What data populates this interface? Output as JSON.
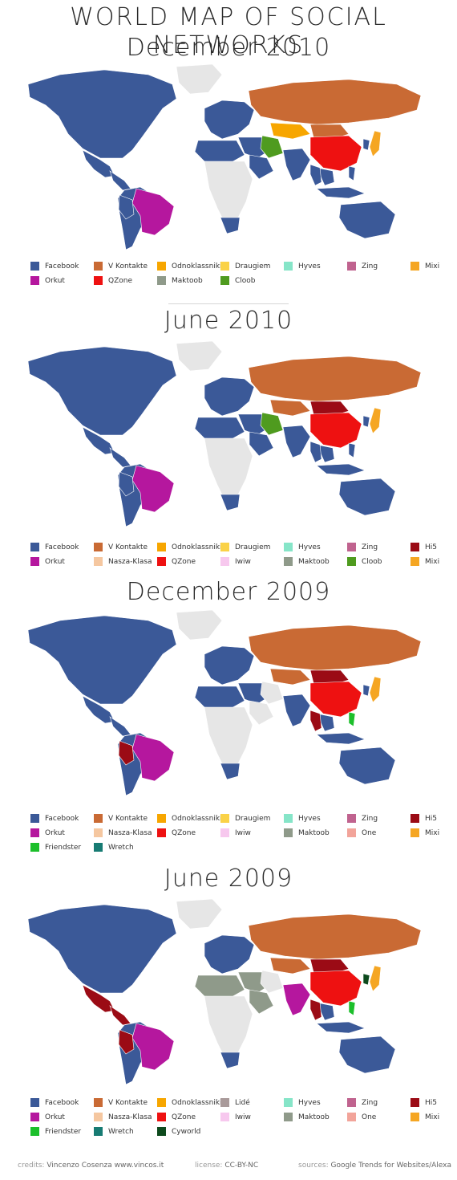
{
  "title": "WORLD MAP OF SOCIAL NETWORKS",
  "colors": {
    "Facebook": "#3b5998",
    "V Kontakte": "#c96a34",
    "Odnoklassniki": "#f7a600",
    "Draugiem": "#fad247",
    "Hyves": "#86e5c8",
    "Zing": "#c0638f",
    "Mixi": "#f5a623",
    "Orkut": "#b5179e",
    "QZone": "#ee1111",
    "Maktoob": "#8f9a8a",
    "Cloob": "#4f9b1f",
    "Hi5": "#9b0b15",
    "Nasza-Klasa": "#f5c7a0",
    "Iwiw": "#f7c8ee",
    "One": "#f2a49a",
    "Friendster": "#1cbf2b",
    "Wretch": "#177b73",
    "Lidé": "#a99a9a",
    "Cyworld": "#0d4a1d",
    "none": "#e6e6e6"
  },
  "maps": [
    {
      "period": "December 2010",
      "legend": [
        [
          "Facebook",
          "V Kontakte",
          "Odnoklassniki",
          "Draugiem",
          "Hyves",
          "Zing",
          "Mixi"
        ],
        [
          "Orkut",
          "QZone",
          "Maktoob",
          "Cloob"
        ]
      ],
      "regions": {
        "northAmerica": "Facebook",
        "mexico": "Facebook",
        "centralAm": "Facebook",
        "southAmerica": "Facebook",
        "brazil": "Orkut",
        "peru": "Facebook",
        "europe": "Facebook",
        "russia": "V Kontakte",
        "central_asia": "Odnoklassniki",
        "middleEast": "Facebook",
        "arabia": "Facebook",
        "iran": "Cloob",
        "northAfrica": "Facebook",
        "africa": "none",
        "southAfrica": "Facebook",
        "india": "Facebook",
        "china": "QZone",
        "mongolia": "V Kontakte",
        "se_asia": "Facebook",
        "thailand": "Facebook",
        "philippines": "Facebook",
        "japan": "Mixi",
        "indonesia": "Facebook",
        "australia": "Facebook",
        "greenland": "none",
        "korea": "Facebook"
      }
    },
    {
      "period": "June 2010",
      "legend": [
        [
          "Facebook",
          "V Kontakte",
          "Odnoklassniki",
          "Draugiem",
          "Hyves",
          "Zing",
          "Hi5"
        ],
        [
          "Orkut",
          "Nasza-Klasa",
          "QZone",
          "Iwiw",
          "Maktoob",
          "Cloob",
          "Mixi"
        ]
      ],
      "regions": {
        "northAmerica": "Facebook",
        "mexico": "Facebook",
        "centralAm": "Facebook",
        "southAmerica": "Facebook",
        "brazil": "Orkut",
        "peru": "Facebook",
        "europe": "Facebook",
        "russia": "V Kontakte",
        "central_asia": "V Kontakte",
        "middleEast": "Facebook",
        "arabia": "Facebook",
        "iran": "Cloob",
        "northAfrica": "Facebook",
        "africa": "none",
        "southAfrica": "Facebook",
        "india": "Facebook",
        "china": "QZone",
        "mongolia": "Hi5",
        "se_asia": "Facebook",
        "thailand": "Facebook",
        "philippines": "Facebook",
        "japan": "Mixi",
        "indonesia": "Facebook",
        "australia": "Facebook",
        "greenland": "none",
        "korea": "Facebook"
      }
    },
    {
      "period": "December 2009",
      "legend": [
        [
          "Facebook",
          "V Kontakte",
          "Odnoklassniki",
          "Draugiem",
          "Hyves",
          "Zing",
          "Hi5"
        ],
        [
          "Orkut",
          "Nasza-Klasa",
          "QZone",
          "Iwiw",
          "Maktoob",
          "One",
          "Mixi"
        ],
        [
          "Friendster",
          "Wretch"
        ]
      ],
      "regions": {
        "northAmerica": "Facebook",
        "mexico": "Facebook",
        "centralAm": "Facebook",
        "southAmerica": "Facebook",
        "brazil": "Orkut",
        "peru": "Hi5",
        "europe": "Facebook",
        "russia": "V Kontakte",
        "central_asia": "V Kontakte",
        "middleEast": "Facebook",
        "arabia": "none",
        "iran": "none",
        "northAfrica": "Facebook",
        "africa": "none",
        "southAfrica": "Facebook",
        "india": "Facebook",
        "china": "QZone",
        "mongolia": "Hi5",
        "se_asia": "Facebook",
        "thailand": "Hi5",
        "philippines": "Friendster",
        "japan": "Mixi",
        "indonesia": "Facebook",
        "australia": "Facebook",
        "greenland": "none",
        "korea": "Facebook"
      }
    },
    {
      "period": "June 2009",
      "legend": [
        [
          "Facebook",
          "V Kontakte",
          "Odnoklassniki",
          "Lidé",
          "Hyves",
          "Zing",
          "Hi5"
        ],
        [
          "Orkut",
          "Nasza-Klasa",
          "QZone",
          "Iwiw",
          "Maktoob",
          "One",
          "Mixi"
        ],
        [
          "Friendster",
          "Wretch",
          "Cyworld"
        ]
      ],
      "regions": {
        "northAmerica": "Facebook",
        "mexico": "Hi5",
        "centralAm": "Hi5",
        "southAmerica": "Facebook",
        "brazil": "Orkut",
        "peru": "Hi5",
        "europe": "Facebook",
        "russia": "V Kontakte",
        "central_asia": "V Kontakte",
        "middleEast": "Maktoob",
        "arabia": "Maktoob",
        "iran": "none",
        "northAfrica": "Maktoob",
        "africa": "none",
        "southAfrica": "Facebook",
        "india": "Orkut",
        "china": "QZone",
        "mongolia": "Hi5",
        "se_asia": "Facebook",
        "thailand": "Hi5",
        "philippines": "Friendster",
        "japan": "Mixi",
        "indonesia": "Facebook",
        "australia": "Facebook",
        "greenland": "none",
        "korea": "Cyworld"
      }
    }
  ],
  "footer": {
    "credits_label": "credits:",
    "credits_value": "Vincenzo Cosenza  www.vincos.it",
    "license_label": "license:",
    "license_value": "CC-BY-NC",
    "sources_label": "sources:",
    "sources_value": "Google Trends for Websites/Alexa"
  }
}
